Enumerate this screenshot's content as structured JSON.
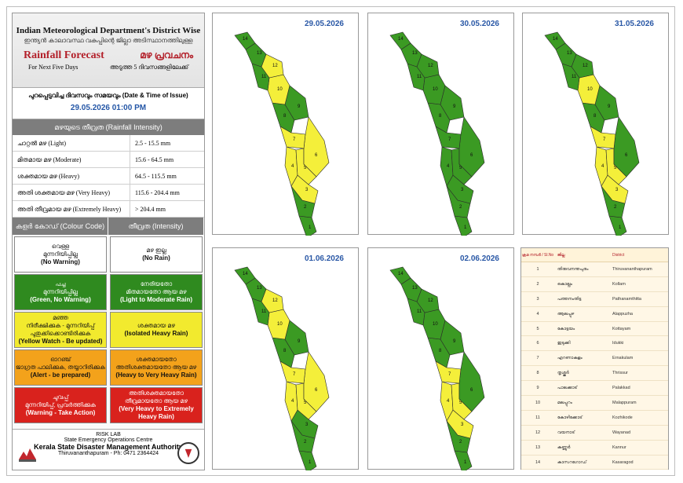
{
  "header": {
    "title": "Indian Meteorological Department's District Wise",
    "title_ml": "ഇന്ത്യൻ കാലാവസ്ഥ വകുപ്പിന്റെ ജില്ലാ അടിസ്ഥാനത്തിലുള്ള",
    "rainfall_forecast": "Rainfall Forecast",
    "rainfall_forecast_ml": "മഴ പ്രവചനം",
    "next_five_days": "For Next Five Days",
    "next_five_days_ml": "അടുത്ത 5 ദിവസങ്ങളിലേക്ക്"
  },
  "issue": {
    "label": "പുറപ്പെടുവിച്ച ദിവസവും സമയവും (Date & Time of Issue)",
    "value": "29.05.2026 01:00 PM"
  },
  "intensity": {
    "heading": "മഴയുടെ തീവ്രത (Rainfall Intensity)",
    "rows": [
      {
        "label": "ചാറ്റൽ മഴ (Light)",
        "range": "2.5 - 15.5 mm"
      },
      {
        "label": "മിതമായ മഴ (Moderate)",
        "range": "15.6 - 64.5 mm"
      },
      {
        "label": "ശക്തമായ മഴ (Heavy)",
        "range": "64.5 - 115.5 mm"
      },
      {
        "label": "അതി ശക്തമായ മഴ (Very Heavy)",
        "range": "115.6 - 204.4 mm"
      },
      {
        "label": "അതി തീവ്രമായ മഴ (Extremely Heavy)",
        "range": "> 204.4 mm"
      }
    ]
  },
  "colour_code": {
    "head_code": "കളർ കോഡ് (Colour Code)",
    "head_intensity": "തീവ്രത (Intensity)",
    "rows": [
      {
        "code_ml": "വെള്ള\nമുന്നറിയിപ്പില്ല",
        "code": "(No Warning)",
        "int_ml": "മഴ ഇല്ല",
        "int": "(No Rain)",
        "color": "#ffffff",
        "text": "#111111"
      },
      {
        "code_ml": "പച്ച\nമുന്നറിയിപ്പില്ല",
        "code": "(Green, No Warning)",
        "int_ml": "നേരിയതോ\nമിതമായതോ ആയ മഴ",
        "int": "(Light to Moderate Rain)",
        "color": "#2f8a1f",
        "text": "#ffffff"
      },
      {
        "code_ml": "മഞ്ഞ\nനിരീക്ഷിക്കുക - മുന്നറിയിപ്പ്\nപുതുക്കിക്കൊണ്ടിരിക്കുക",
        "code": "(Yellow Watch - Be updated)",
        "int_ml": "ശക്തമായ മഴ",
        "int": "(Isolated Heavy Rain)",
        "color": "#f2ea2e",
        "text": "#111111"
      },
      {
        "code_ml": "ഓറഞ്ച്\nജാഗ്രത പാലിക്കുക, തയ്യാറിരിക്കുക",
        "code": "(Alert - be prepared)",
        "int_ml": "ശക്തമായതോ\nഅതിശക്തമായതോ ആയ മഴ",
        "int": "(Heavy to Very Heavy Rain)",
        "color": "#f3a21b",
        "text": "#111111"
      },
      {
        "code_ml": "ചുവപ്പ്\nമുന്നറിയിപ്പ്, പ്രവർത്തിക്കുക",
        "code": "(Warning - Take Action)",
        "int_ml": "അതിശക്തമായതോ\nതീവ്രമായതോ ആയ മഴ",
        "int": "(Very Heavy to Extremely Heavy Rain)",
        "color": "#d9221d",
        "text": "#ffffff"
      }
    ]
  },
  "footer": {
    "lab": "RISK LAB",
    "centre": "State Emergency Operations Centre",
    "authority": "Kerala State Disaster Management Authority",
    "address": "Thiruvananthapuram - Ph: 0471 2364424"
  },
  "maps": [
    {
      "date": "29.05.2026",
      "yellow": [
        3,
        4,
        5,
        6,
        7,
        10,
        12
      ]
    },
    {
      "date": "30.05.2026",
      "yellow": []
    },
    {
      "date": "31.05.2026",
      "yellow": [
        3,
        4,
        5,
        7,
        10
      ]
    },
    {
      "date": "01.06.2026",
      "yellow": [
        4,
        5,
        6,
        7,
        10,
        12
      ]
    },
    {
      "date": "02.06.2026",
      "yellow": [
        3,
        4,
        5,
        7
      ]
    }
  ],
  "colors": {
    "green": "#3b9a23",
    "yellow": "#f4ef3a"
  },
  "district_table": {
    "headers": [
      "ക്രമ നമ്പർ / Sl.No",
      "ജില്ല",
      "District"
    ],
    "rows": [
      [
        "1",
        "തിരുവനന്തപുരം",
        "Thiruvananthapuram"
      ],
      [
        "2",
        "കൊല്ലം",
        "Kollam"
      ],
      [
        "3",
        "പത്തനംതിട്ട",
        "Pathanamthitta"
      ],
      [
        "4",
        "ആലപ്പുഴ",
        "Alappuzha"
      ],
      [
        "5",
        "കോട്ടയം",
        "Kottayam"
      ],
      [
        "6",
        "ഇടുക്കി",
        "Idukki"
      ],
      [
        "7",
        "എറണാകുളം",
        "Ernakulam"
      ],
      [
        "8",
        "തൃശ്ശൂർ",
        "Thrissur"
      ],
      [
        "9",
        "പാലക്കാട്",
        "Palakkad"
      ],
      [
        "10",
        "മലപ്പുറം",
        "Malappuram"
      ],
      [
        "11",
        "കോഴിക്കോട്",
        "Kozhikode"
      ],
      [
        "12",
        "വയനാട്",
        "Wayanad"
      ],
      [
        "13",
        "കണ്ണൂർ",
        "Kannur"
      ],
      [
        "14",
        "കാസറഗോഡ്",
        "Kasaragod"
      ]
    ]
  }
}
